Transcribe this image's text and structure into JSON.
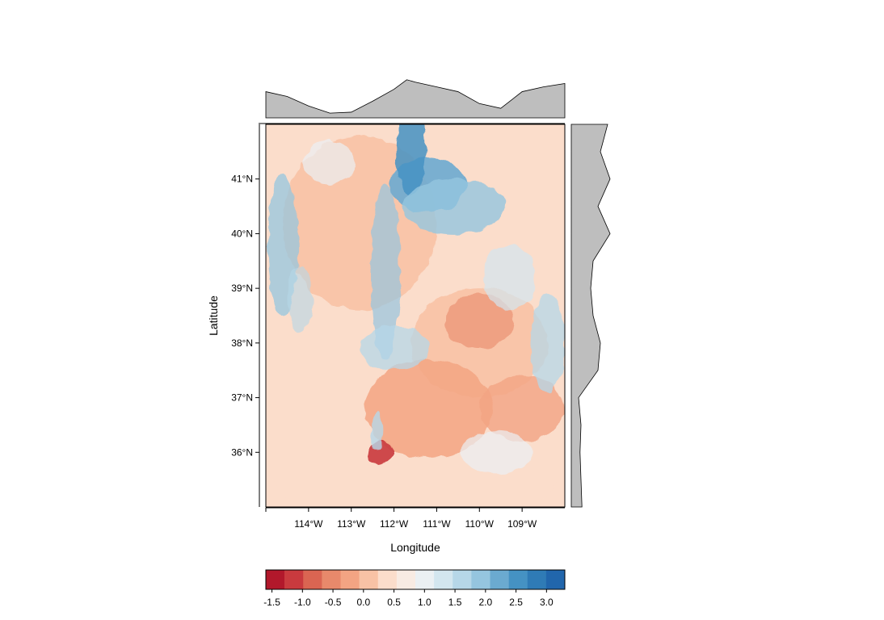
{
  "chart_data": {
    "type": "heatmap",
    "title": "",
    "xlabel": "Longitude",
    "ylabel": "Latitude",
    "xlim": [
      -115,
      -108
    ],
    "ylim": [
      35,
      42
    ],
    "x_ticks": [
      {
        "value": -114,
        "label": "114°W"
      },
      {
        "value": -113,
        "label": "113°W"
      },
      {
        "value": -112,
        "label": "112°W"
      },
      {
        "value": -111,
        "label": "111°W"
      },
      {
        "value": -110,
        "label": "110°W"
      },
      {
        "value": -109,
        "label": "109°W"
      }
    ],
    "y_ticks": [
      {
        "value": 36,
        "label": "36°N"
      },
      {
        "value": 37,
        "label": "37°N"
      },
      {
        "value": 38,
        "label": "38°N"
      },
      {
        "value": 39,
        "label": "39°N"
      },
      {
        "value": 40,
        "label": "40°N"
      },
      {
        "value": 41,
        "label": "41°N"
      }
    ],
    "colorbar": {
      "placement": "bottom",
      "range": [
        -1.6,
        3.3
      ],
      "tick_values": [
        -1.5,
        -1.0,
        -0.5,
        0.0,
        0.5,
        1.0,
        1.5,
        2.0,
        2.5,
        3.0
      ],
      "tick_labels": [
        "-1.5",
        "-1.0",
        "-0.5",
        "0.0",
        "0.5",
        "1.0",
        "1.5",
        "2.0",
        "2.5",
        "3.0"
      ],
      "colors": [
        "#B2182B",
        "#C93A3E",
        "#DA6552",
        "#E8896B",
        "#F3A483",
        "#F8C2A5",
        "#FBDDCB",
        "#F8EBE3",
        "#EBF0F3",
        "#D3E6EF",
        "#B6D7E8",
        "#95C5DF",
        "#6BAAD0",
        "#4592C3",
        "#2F7BB6",
        "#2166AC"
      ]
    },
    "marginal_top": {
      "description": "column means of the raster, across longitude",
      "x": [
        -115,
        -114.5,
        -114,
        -113.5,
        -113,
        -112.5,
        -112,
        -111.7,
        -111.5,
        -111,
        -110.5,
        -110,
        -109.5,
        -109,
        -108.5,
        -108
      ],
      "y": [
        0.55,
        0.45,
        0.25,
        0.1,
        0.12,
        0.35,
        0.6,
        0.8,
        0.75,
        0.65,
        0.55,
        0.3,
        0.2,
        0.55,
        0.65,
        0.72
      ]
    },
    "marginal_right": {
      "description": "row means of the raster, across latitude",
      "y": [
        42,
        41.5,
        41,
        40.5,
        40,
        39.5,
        39,
        38.5,
        38,
        37.5,
        37,
        36.5,
        36,
        35.5,
        35
      ],
      "x": [
        0.75,
        0.6,
        0.8,
        0.55,
        0.8,
        0.45,
        0.4,
        0.45,
        0.6,
        0.55,
        0.15,
        0.2,
        0.18,
        0.2,
        0.22
      ]
    },
    "grid": false
  }
}
